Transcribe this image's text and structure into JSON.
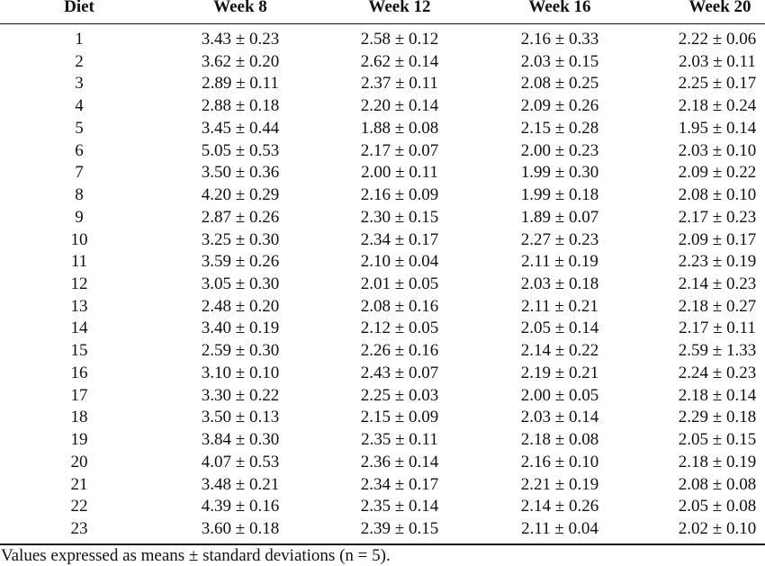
{
  "table": {
    "header": [
      "Diet",
      "Week 8",
      "Week 12",
      "Week 16",
      "Week 20"
    ],
    "rows": [
      [
        "1",
        "3.43 ± 0.23",
        "2.58 ± 0.12",
        "2.16 ± 0.33",
        "2.22 ± 0.06"
      ],
      [
        "2",
        "3.62 ± 0.20",
        "2.62 ± 0.14",
        "2.03 ± 0.15",
        "2.03 ± 0.11"
      ],
      [
        "3",
        "2.89 ± 0.11",
        "2.37 ± 0.11",
        "2.08 ± 0.25",
        "2.25 ± 0.17"
      ],
      [
        "4",
        "2.88 ± 0.18",
        "2.20 ± 0.14",
        "2.09 ± 0.26",
        "2.18 ± 0.24"
      ],
      [
        "5",
        "3.45 ± 0.44",
        "1.88 ± 0.08",
        "2.15 ± 0.28",
        "1.95 ± 0.14"
      ],
      [
        "6",
        "5.05 ± 0.53",
        "2.17 ± 0.07",
        "2.00 ± 0.23",
        "2.03 ± 0.10"
      ],
      [
        "7",
        "3.50 ± 0.36",
        "2.00 ± 0.11",
        "1.99 ± 0.30",
        "2.09 ± 0.22"
      ],
      [
        "8",
        "4.20 ± 0.29",
        "2.16 ± 0.09",
        "1.99 ± 0.18",
        "2.08 ± 0.10"
      ],
      [
        "9",
        "2.87 ± 0.26",
        "2.30 ± 0.15",
        "1.89 ± 0.07",
        "2.17 ± 0.23"
      ],
      [
        "10",
        "3.25 ± 0.30",
        "2.34 ± 0.17",
        "2.27 ± 0.23",
        "2.09 ± 0.17"
      ],
      [
        "11",
        "3.59 ± 0.26",
        "2.10 ± 0.04",
        "2.11 ± 0.19",
        "2.23 ± 0.19"
      ],
      [
        "12",
        "3.05 ± 0.30",
        "2.01 ± 0.05",
        "2.03 ± 0.18",
        "2.14 ± 0.23"
      ],
      [
        "13",
        "2.48 ± 0.20",
        "2.08 ± 0.16",
        "2.11 ± 0.21",
        "2.18 ± 0.27"
      ],
      [
        "14",
        "3.40 ± 0.19",
        "2.12 ± 0.05",
        "2.05 ± 0.14",
        "2.17 ± 0.11"
      ],
      [
        "15",
        "2.59 ± 0.30",
        "2.26 ± 0.16",
        "2.14 ± 0.22",
        "2.59 ± 1.33"
      ],
      [
        "16",
        "3.10 ± 0.10",
        "2.43 ± 0.07",
        "2.19 ± 0.21",
        "2.24 ± 0.23"
      ],
      [
        "17",
        "3.30 ± 0.22",
        "2.25 ± 0.03",
        "2.00 ± 0.05",
        "2.18 ± 0.14"
      ],
      [
        "18",
        "3.50 ± 0.13",
        "2.15 ± 0.09",
        "2.03 ± 0.14",
        "2.29 ± 0.18"
      ],
      [
        "19",
        "3.84 ± 0.30",
        "2.35 ± 0.11",
        "2.18 ± 0.08",
        "2.05 ± 0.15"
      ],
      [
        "20",
        "4.07 ± 0.53",
        "2.36 ± 0.14",
        "2.16 ± 0.10",
        "2.18 ± 0.19"
      ],
      [
        "21",
        "3.48 ± 0.21",
        "2.34 ± 0.17",
        "2.21 ± 0.19",
        "2.08 ± 0.08"
      ],
      [
        "22",
        "4.39 ± 0.16",
        "2.35 ± 0.14",
        "2.14 ± 0.26",
        "2.05 ± 0.08"
      ],
      [
        "23",
        "3.60 ± 0.18",
        "2.39 ± 0.15",
        "2.11 ± 0.04",
        "2.02 ± 0.10"
      ]
    ],
    "footnote": "Values expressed as means ± standard deviations (n = 5)."
  }
}
